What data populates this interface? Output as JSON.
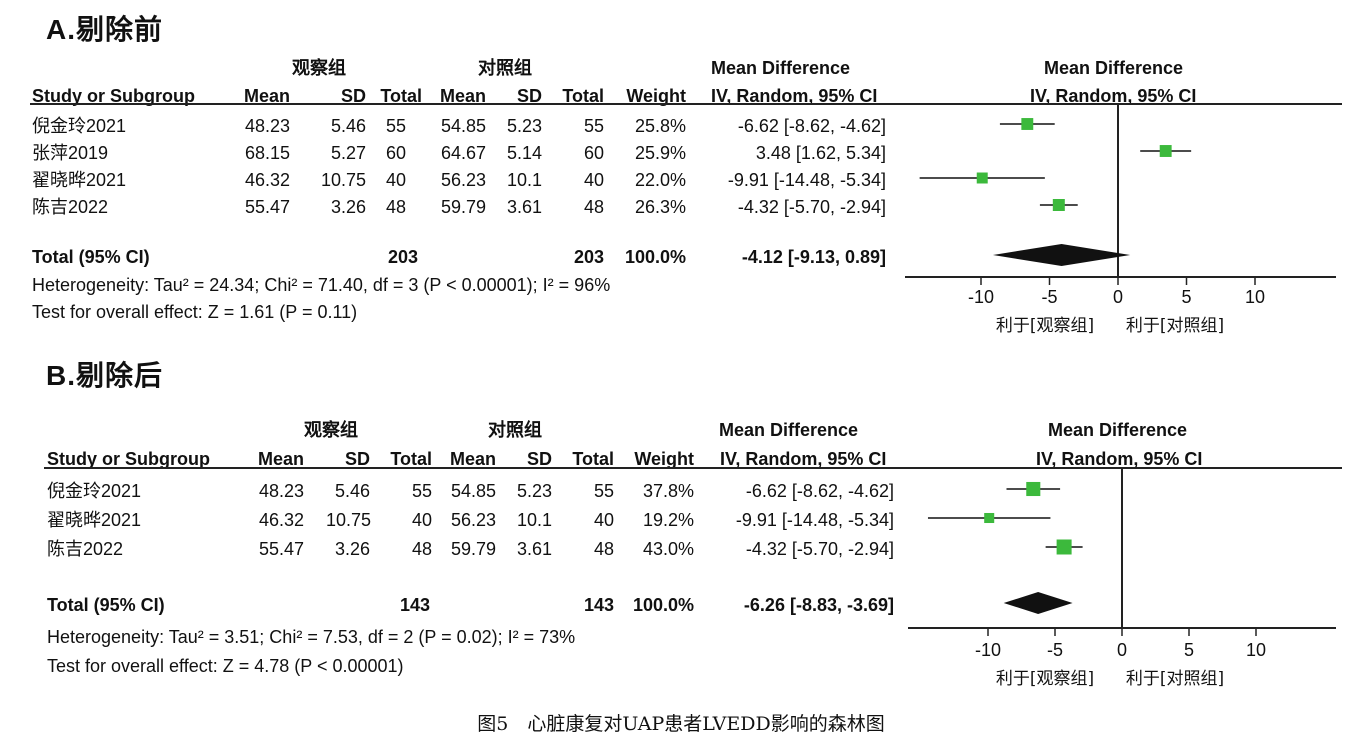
{
  "figure_caption": "图5　心脏康复对UAP患者LVEDD影响的森林图",
  "chart_data": [
    {
      "type": "forest",
      "panel_title": "A.剔除前",
      "group1_label": "观察组",
      "group2_label": "对照组",
      "columns": [
        "Study or Subgroup",
        "Mean",
        "SD",
        "Total",
        "Mean",
        "SD",
        "Total",
        "Weight",
        "IV, Random, 95% CI"
      ],
      "effect_header": "Mean Difference",
      "plot_header": [
        "Mean Difference",
        "IV, Random, 95% CI"
      ],
      "studies": [
        {
          "name": "倪金玲2021",
          "g1_mean": "48.23",
          "g1_sd": "5.46",
          "g1_total": "55",
          "g2_mean": "54.85",
          "g2_sd": "5.23",
          "g2_total": "55",
          "weight": "25.8%",
          "ci_text": "-6.62 [-8.62, -4.62]",
          "md": -6.62,
          "lo": -8.62,
          "hi": -4.62,
          "w": 25.8
        },
        {
          "name": "张萍2019",
          "g1_mean": "68.15",
          "g1_sd": "5.27",
          "g1_total": "60",
          "g2_mean": "64.67",
          "g2_sd": "5.14",
          "g2_total": "60",
          "weight": "25.9%",
          "ci_text": "3.48 [1.62, 5.34]",
          "md": 3.48,
          "lo": 1.62,
          "hi": 5.34,
          "w": 25.9
        },
        {
          "name": "翟晓晔2021",
          "g1_mean": "46.32",
          "g1_sd": "10.75",
          "g1_total": "40",
          "g2_mean": "56.23",
          "g2_sd": "10.1",
          "g2_total": "40",
          "weight": "22.0%",
          "ci_text": "-9.91 [-14.48, -5.34]",
          "md": -9.91,
          "lo": -14.48,
          "hi": -5.34,
          "w": 22.0
        },
        {
          "name": "陈吉2022",
          "g1_mean": "55.47",
          "g1_sd": "3.26",
          "g1_total": "48",
          "g2_mean": "59.79",
          "g2_sd": "3.61",
          "g2_total": "48",
          "weight": "26.3%",
          "ci_text": "-4.32 [-5.70, -2.94]",
          "md": -4.32,
          "lo": -5.7,
          "hi": -2.94,
          "w": 26.3
        }
      ],
      "total": {
        "label": "Total (95% CI)",
        "g1_total": "203",
        "g2_total": "203",
        "weight": "100.0%",
        "ci_text": "-4.12 [-9.13, 0.89]",
        "md": -4.12,
        "lo": -9.13,
        "hi": 0.89
      },
      "heterogeneity": "Heterogeneity: Tau² = 24.34; Chi² = 71.40, df = 3 (P < 0.00001); I² = 96%",
      "overall_effect": "Test for overall effect: Z = 1.61 (P = 0.11)",
      "x_ticks": [
        "-10",
        "-5",
        "0",
        "5",
        "10"
      ],
      "xlim": [
        -15,
        16
      ],
      "favours_left": "利于[观察组]",
      "favours_right": "利于[对照组]",
      "marker_color": "#3cb93c"
    },
    {
      "type": "forest",
      "panel_title": "B.剔除后",
      "group1_label": "观察组",
      "group2_label": "对照组",
      "columns": [
        "Study or Subgroup",
        "Mean",
        "SD",
        "Total",
        "Mean",
        "SD",
        "Total",
        "Weight",
        "IV, Random, 95% CI"
      ],
      "effect_header": "Mean Difference",
      "plot_header": [
        "Mean Difference",
        "IV, Random, 95% CI"
      ],
      "studies": [
        {
          "name": "倪金玲2021",
          "g1_mean": "48.23",
          "g1_sd": "5.46",
          "g1_total": "55",
          "g2_mean": "54.85",
          "g2_sd": "5.23",
          "g2_total": "55",
          "weight": "37.8%",
          "ci_text": "-6.62 [-8.62, -4.62]",
          "md": -6.62,
          "lo": -8.62,
          "hi": -4.62,
          "w": 37.8
        },
        {
          "name": "翟晓晔2021",
          "g1_mean": "46.32",
          "g1_sd": "10.75",
          "g1_total": "40",
          "g2_mean": "56.23",
          "g2_sd": "10.1",
          "g2_total": "40",
          "weight": "19.2%",
          "ci_text": "-9.91 [-14.48, -5.34]",
          "md": -9.91,
          "lo": -14.48,
          "hi": -5.34,
          "w": 19.2
        },
        {
          "name": "陈吉2022",
          "g1_mean": "55.47",
          "g1_sd": "3.26",
          "g1_total": "48",
          "g2_mean": "59.79",
          "g2_sd": "3.61",
          "g2_total": "48",
          "weight": "43.0%",
          "ci_text": "-4.32 [-5.70, -2.94]",
          "md": -4.32,
          "lo": -5.7,
          "hi": -2.94,
          "w": 43.0
        }
      ],
      "total": {
        "label": "Total (95% CI)",
        "g1_total": "143",
        "g2_total": "143",
        "weight": "100.0%",
        "ci_text": "-6.26 [-8.83, -3.69]",
        "md": -6.26,
        "lo": -8.83,
        "hi": -3.69
      },
      "heterogeneity": "Heterogeneity: Tau² = 3.51; Chi² = 7.53, df = 2 (P = 0.02); I² = 73%",
      "overall_effect": "Test for overall effect: Z = 4.78 (P < 0.00001)",
      "x_ticks": [
        "-10",
        "-5",
        "0",
        "5",
        "10"
      ],
      "xlim": [
        -15,
        16
      ],
      "favours_left": "利于[观察组]",
      "favours_right": "利于[对照组]",
      "marker_color": "#3cb93c"
    }
  ]
}
